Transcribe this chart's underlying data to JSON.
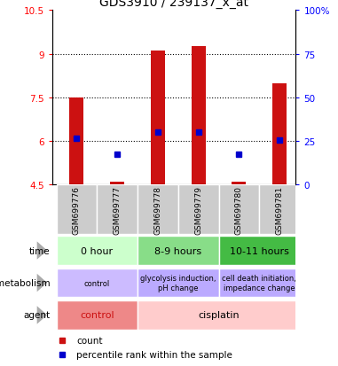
{
  "title": "GDS3910 / 239137_x_at",
  "samples": [
    "GSM699776",
    "GSM699777",
    "GSM699778",
    "GSM699779",
    "GSM699780",
    "GSM699781"
  ],
  "bar_bottoms": [
    4.5,
    4.5,
    4.5,
    4.5,
    4.5,
    4.5
  ],
  "bar_tops": [
    7.5,
    4.62,
    9.1,
    9.25,
    4.62,
    8.0
  ],
  "percentile_values": [
    6.1,
    5.55,
    6.3,
    6.3,
    5.55,
    6.05
  ],
  "ylim_left": [
    4.5,
    10.5
  ],
  "ylim_right": [
    0,
    100
  ],
  "yticks_left": [
    4.5,
    6.0,
    7.5,
    9.0,
    10.5
  ],
  "yticks_right": [
    0,
    25,
    50,
    75,
    100
  ],
  "ytick_labels_left": [
    "4.5",
    "6",
    "7.5",
    "9",
    "10.5"
  ],
  "ytick_labels_right": [
    "0",
    "25",
    "50",
    "75",
    "100%"
  ],
  "hlines": [
    6.0,
    7.5,
    9.0
  ],
  "bar_color": "#cc1111",
  "percentile_color": "#0000cc",
  "bar_width": 0.35,
  "time_data": [
    {
      "span": [
        -0.5,
        1.5
      ],
      "label": "0 hour",
      "color": "#ccffcc"
    },
    {
      "span": [
        1.5,
        3.5
      ],
      "label": "8-9 hours",
      "color": "#88dd88"
    },
    {
      "span": [
        3.5,
        5.5
      ],
      "label": "10-11 hours",
      "color": "#44bb44"
    }
  ],
  "meta_data": [
    {
      "span": [
        -0.5,
        1.5
      ],
      "label": "control",
      "color": "#ccbbff"
    },
    {
      "span": [
        1.5,
        3.5
      ],
      "label": "glycolysis induction,\npH change",
      "color": "#bbaaff"
    },
    {
      "span": [
        3.5,
        5.5
      ],
      "label": "cell death initiation,\nimpedance change",
      "color": "#bbaaff"
    }
  ],
  "agent_data": [
    {
      "span": [
        -0.5,
        1.5
      ],
      "label": "control",
      "color": "#ee8888",
      "tcolor": "#cc1111"
    },
    {
      "span": [
        1.5,
        5.5
      ],
      "label": "cisplatin",
      "color": "#ffcccc",
      "tcolor": "#000000"
    }
  ],
  "row_labels": [
    "time",
    "metabolism",
    "agent"
  ],
  "legend_count_color": "#cc1111",
  "legend_percentile_color": "#0000cc",
  "bg_color": "#ffffff",
  "sample_bg_color": "#cccccc",
  "arrow_color": "#aaaaaa",
  "xlim": [
    -0.6,
    5.4
  ]
}
